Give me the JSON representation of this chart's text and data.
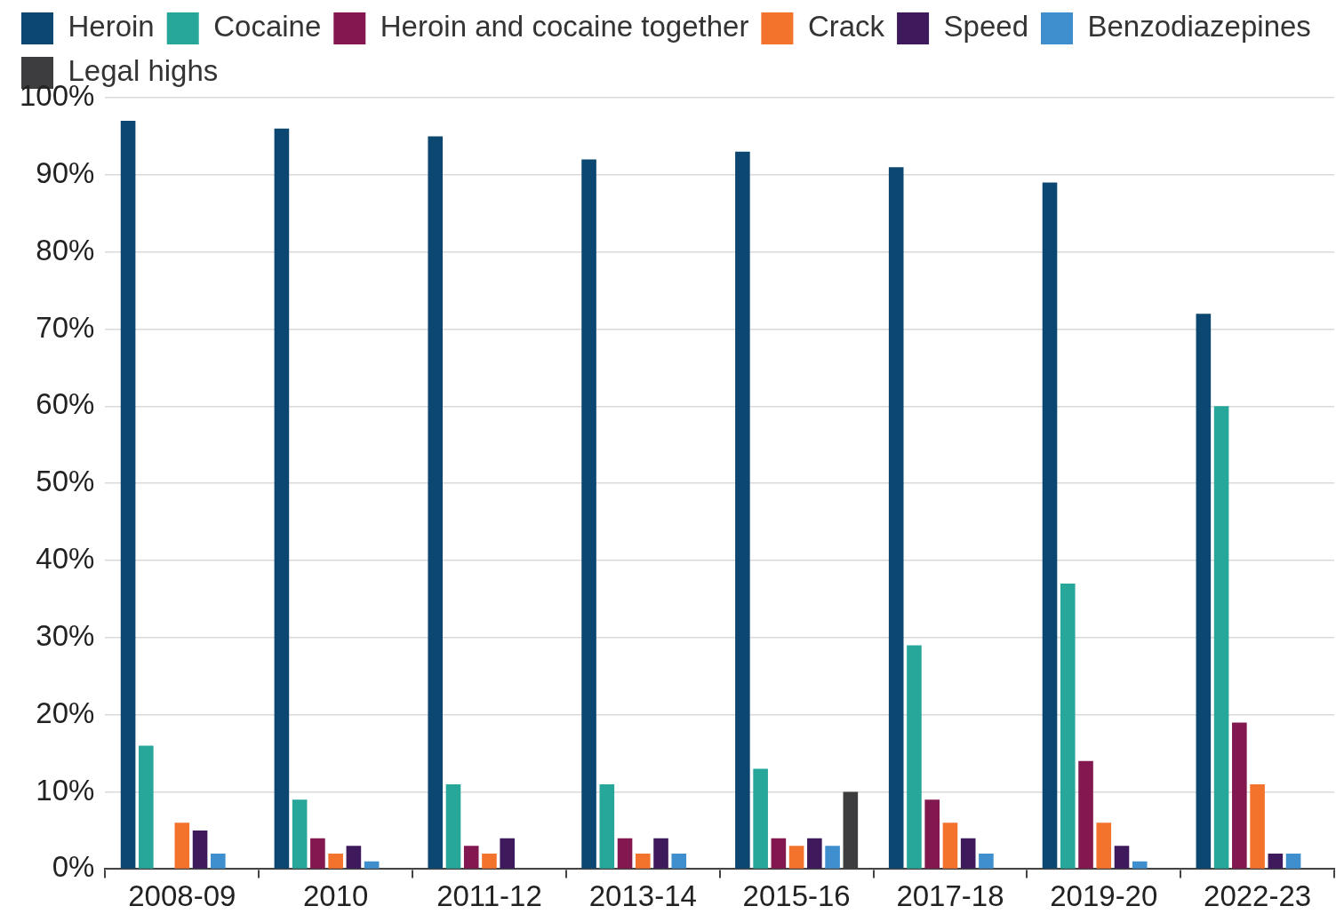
{
  "chart_data": {
    "type": "bar",
    "categories": [
      "2008-09",
      "2010",
      "2011-12",
      "2013-14",
      "2015-16",
      "2017-18",
      "2019-20",
      "2022-23"
    ],
    "series": [
      {
        "name": "Heroin",
        "color": "#0b4770",
        "values": [
          97,
          96,
          95,
          92,
          93,
          91,
          89,
          72
        ]
      },
      {
        "name": "Cocaine",
        "color": "#27a69a",
        "values": [
          16,
          9,
          11,
          11,
          13,
          29,
          37,
          60
        ]
      },
      {
        "name": "Heroin and cocaine together",
        "color": "#83174f",
        "values": [
          null,
          4,
          3,
          4,
          4,
          9,
          14,
          19
        ]
      },
      {
        "name": "Crack",
        "color": "#f3722c",
        "values": [
          6,
          2,
          2,
          2,
          3,
          6,
          6,
          11
        ]
      },
      {
        "name": "Speed",
        "color": "#3e1a5c",
        "values": [
          5,
          3,
          4,
          4,
          4,
          4,
          3,
          2
        ]
      },
      {
        "name": "Benzodiazepines",
        "color": "#3f8fcf",
        "values": [
          2,
          1,
          null,
          2,
          3,
          2,
          1,
          2
        ]
      },
      {
        "name": "Legal highs",
        "color": "#3d3d3f",
        "values": [
          null,
          null,
          null,
          null,
          10,
          null,
          null,
          null
        ]
      }
    ],
    "ylim": [
      0,
      100
    ],
    "yticks": [
      {
        "value": 0,
        "label": "0%"
      },
      {
        "value": 10,
        "label": "10%"
      },
      {
        "value": 20,
        "label": "20%"
      },
      {
        "value": 30,
        "label": "30%"
      },
      {
        "value": 40,
        "label": "40%"
      },
      {
        "value": 50,
        "label": "50%"
      },
      {
        "value": 60,
        "label": "60%"
      },
      {
        "value": 70,
        "label": "70%"
      },
      {
        "value": 80,
        "label": "80%"
      },
      {
        "value": 90,
        "label": "90%"
      },
      {
        "value": 100,
        "label": "100%"
      }
    ],
    "grid": "y",
    "legend": "top"
  }
}
